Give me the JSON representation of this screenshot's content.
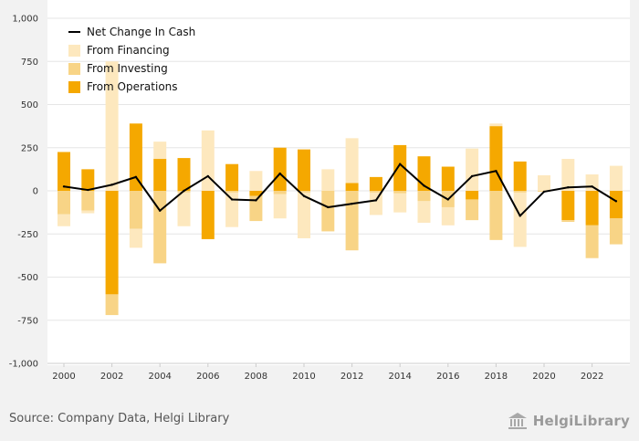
{
  "chart_data": {
    "type": "bar",
    "stacked": true,
    "categories": [
      "2000",
      "2001",
      "2002",
      "2003",
      "2004",
      "2005",
      "2006",
      "2007",
      "2008",
      "2009",
      "2010",
      "2011",
      "2012",
      "2013",
      "2014",
      "2015",
      "2016",
      "2017",
      "2018",
      "2019",
      "2020",
      "2021",
      "2022",
      "2023"
    ],
    "series": [
      {
        "name": "From Operations",
        "type": "bar",
        "values": [
          225,
          125,
          -600,
          390,
          185,
          190,
          -280,
          155,
          -30,
          250,
          240,
          0,
          45,
          80,
          265,
          200,
          140,
          -50,
          375,
          170,
          0,
          -170,
          -200,
          -160
        ]
      },
      {
        "name": "From Investing",
        "type": "bar",
        "values": [
          -135,
          -115,
          -120,
          -220,
          -420,
          -10,
          0,
          -10,
          -145,
          -20,
          -10,
          -235,
          -345,
          -10,
          -15,
          -60,
          -95,
          -120,
          -285,
          -10,
          -5,
          -10,
          -190,
          -150
        ]
      },
      {
        "name": "From Financing",
        "type": "bar",
        "values": [
          -70,
          -15,
          750,
          -110,
          100,
          -195,
          350,
          -200,
          115,
          -140,
          -265,
          125,
          260,
          -130,
          -110,
          -125,
          -105,
          245,
          15,
          -315,
          90,
          185,
          95,
          145
        ]
      },
      {
        "name": "Net Change In Cash",
        "type": "line",
        "values": [
          25,
          5,
          35,
          80,
          -115,
          0,
          85,
          -50,
          -55,
          100,
          -30,
          -95,
          -75,
          -55,
          155,
          30,
          -50,
          85,
          115,
          -145,
          -5,
          20,
          25,
          -60
        ]
      }
    ],
    "colors": {
      "From Operations": "#f5a800",
      "From Investing": "#f8d486",
      "From Financing": "#fde8be",
      "Net Change In Cash": "#000000"
    },
    "ylim": [
      -1000,
      1000
    ],
    "yticks": [
      -1000,
      -750,
      -500,
      -250,
      0,
      250,
      500,
      750,
      1000
    ],
    "ytick_labels": [
      "-1,000",
      "-750",
      "-500",
      "-250",
      "0",
      "250",
      "500",
      "750",
      "1,000"
    ],
    "xtick_labels": [
      "2000",
      "2002",
      "2004",
      "2006",
      "2008",
      "2010",
      "2012",
      "2014",
      "2016",
      "2018",
      "2020",
      "2022"
    ],
    "legend": {
      "placement": "top-left",
      "entries": [
        "Net Change In Cash",
        "From Financing",
        "From Investing",
        "From Operations"
      ]
    },
    "grid": true,
    "background": "#ffffff"
  },
  "footer": {
    "source": "Source: Company Data, Helgi Library",
    "logo_text": "HelgiLibrary"
  }
}
